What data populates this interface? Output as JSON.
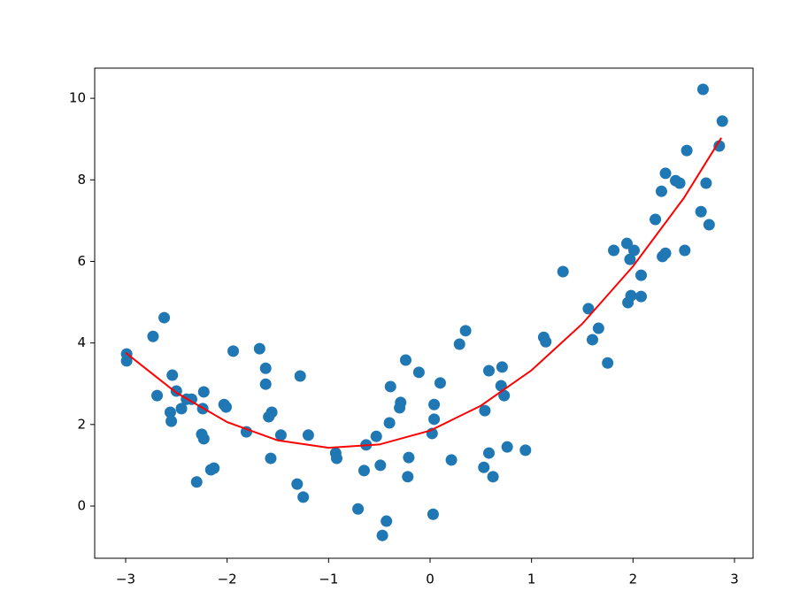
{
  "chart_data": {
    "type": "scatter",
    "xlim": [
      -3.305,
      3.183
    ],
    "ylim": [
      -1.28,
      10.74
    ],
    "xticks": [
      {
        "value": -3,
        "label": "−3"
      },
      {
        "value": -2,
        "label": "−2"
      },
      {
        "value": -1,
        "label": "−1"
      },
      0,
      1,
      2,
      3
    ],
    "yticks": [
      0,
      2,
      4,
      6,
      8,
      10
    ],
    "series": [
      {
        "type": "scatter",
        "color": "#1f77b4",
        "x": [
          -2.99,
          -2.99,
          -2.73,
          -2.62,
          -2.69,
          -2.54,
          -2.56,
          -2.55,
          -2.5,
          -2.45,
          -2.4,
          -2.35,
          -2.3,
          -2.24,
          -2.23,
          -2.25,
          -2.23,
          -2.16,
          -2.13,
          -2.03,
          -2.01,
          -1.94,
          -1.81,
          -1.68,
          -1.62,
          -1.62,
          -1.59,
          -1.56,
          -1.57,
          -1.47,
          -1.28,
          -1.31,
          -1.25,
          -1.2,
          -0.93,
          -0.92,
          -0.71,
          -0.65,
          -0.63,
          -0.53,
          -0.49,
          -0.47,
          -0.43,
          -0.4,
          -0.39,
          -0.3,
          -0.29,
          -0.24,
          -0.22,
          -0.21,
          -0.11,
          0.02,
          0.03,
          0.04,
          0.04,
          0.1,
          0.21,
          0.29,
          0.35,
          0.53,
          0.54,
          0.58,
          0.58,
          0.62,
          0.7,
          0.71,
          0.73,
          0.76,
          0.94,
          1.12,
          1.14,
          1.31,
          1.56,
          1.6,
          1.66,
          1.75,
          1.81,
          1.94,
          1.95,
          1.97,
          1.98,
          2.01,
          2.08,
          2.08,
          2.22,
          2.28,
          2.29,
          2.32,
          2.32,
          2.42,
          2.46,
          2.51,
          2.53,
          2.67,
          2.69,
          2.72,
          2.75,
          2.85,
          2.88
        ],
        "values": [
          3.56,
          3.73,
          4.16,
          4.62,
          2.71,
          3.21,
          2.3,
          2.08,
          2.82,
          2.39,
          2.62,
          2.62,
          0.59,
          2.39,
          2.8,
          1.76,
          1.65,
          0.89,
          0.93,
          2.49,
          2.43,
          3.8,
          1.82,
          3.86,
          3.38,
          2.99,
          2.19,
          2.3,
          1.17,
          1.74,
          3.19,
          0.54,
          0.22,
          1.74,
          1.3,
          1.17,
          -0.07,
          0.87,
          1.5,
          1.71,
          1.0,
          -0.72,
          -0.37,
          2.04,
          2.93,
          2.41,
          2.54,
          3.58,
          0.72,
          1.19,
          3.28,
          1.78,
          -0.2,
          2.49,
          2.13,
          3.02,
          1.13,
          3.97,
          4.3,
          0.95,
          2.34,
          3.32,
          1.3,
          0.72,
          2.95,
          3.41,
          2.71,
          1.45,
          1.37,
          4.14,
          4.03,
          5.75,
          4.84,
          4.08,
          4.36,
          3.51,
          6.27,
          6.44,
          4.99,
          6.05,
          5.16,
          6.27,
          5.66,
          5.14,
          7.03,
          7.72,
          6.12,
          8.16,
          6.2,
          7.98,
          7.92,
          6.27,
          8.72,
          7.22,
          10.22,
          7.92,
          6.9,
          8.83,
          9.44
        ]
      },
      {
        "type": "line",
        "color": "#ff0000",
        "x": [
          -3,
          -2.5,
          -2,
          -1.5,
          -1,
          -0.5,
          0,
          0.5,
          1,
          1.5,
          2,
          2.5,
          2.87
        ],
        "values": [
          3.76,
          2.78,
          2.06,
          1.61,
          1.43,
          1.51,
          1.85,
          2.46,
          3.33,
          4.47,
          5.88,
          7.55,
          9.03
        ]
      }
    ]
  }
}
